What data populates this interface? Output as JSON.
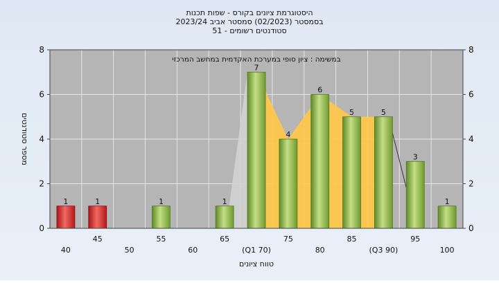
{
  "chart_data": {
    "type": "bar",
    "title_lines": [
      "היסטוגרמת ציונים בקורס - שפות תכנות",
      "בסמסטר  (02/2023)  סמסטר אביב 2023/24",
      "סטודנטים רשומים - 51"
    ],
    "inner_caption": "במשימה : ציון סופי במערכת האקדמית במחשב המרכזי",
    "xlabel": "טווח ציונים",
    "ylabel": "מספר סטודנטים",
    "ylim": [
      0,
      8
    ],
    "y_ticks": [
      0,
      2,
      4,
      6,
      8
    ],
    "categories": [
      40,
      45,
      50,
      55,
      60,
      65,
      70,
      75,
      80,
      85,
      90,
      95,
      100
    ],
    "x_tick_labels": [
      "40",
      "45",
      "50",
      "55",
      "60",
      "65",
      "(Q1 70)",
      "75",
      "80",
      "85",
      "(Q3 90)",
      "95",
      "100"
    ],
    "values": [
      1,
      1,
      0,
      1,
      0,
      1,
      7,
      4,
      6,
      5,
      5,
      3,
      1
    ],
    "data_labels": [
      "1",
      "1",
      "",
      "1",
      "",
      "1",
      "7",
      "4",
      "6",
      "5",
      "5",
      "3",
      "1"
    ],
    "failing_threshold": 50,
    "quartile_band": [
      70,
      90
    ],
    "grid": true,
    "colors": {
      "fail_bar": "#d9282c",
      "pass_bar": "#8fb84a",
      "quartile_band": "#ffc84a",
      "plot_background": "#b5b5b5",
      "grid": "#e6e6e6"
    }
  }
}
